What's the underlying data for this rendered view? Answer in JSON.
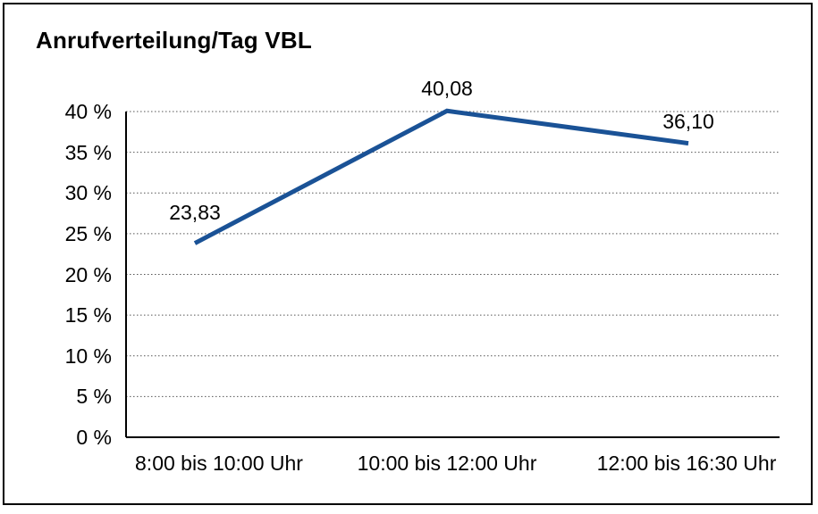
{
  "chart_data": {
    "type": "line",
    "title": "Anrufverteilung/Tag VBL",
    "categories": [
      "8:00 bis 10:00 Uhr",
      "10:00 bis 12:00 Uhr",
      "12:00 bis 16:30 Uhr"
    ],
    "values": [
      23.83,
      40.08,
      36.1
    ],
    "data_labels": [
      "23,83",
      "40,08",
      "36,10"
    ],
    "xlabel": "",
    "ylabel": "",
    "ylim": [
      0,
      40
    ],
    "ytick_step": 5,
    "ytick_labels": [
      "0 %",
      "5 %",
      "10 %",
      "15 %",
      "20 %",
      "25 %",
      "30 %",
      "35 %",
      "40 %"
    ],
    "grid": "horizontal-dotted",
    "legend": "none",
    "colors": {
      "line": "#1a5296",
      "grid": "#555555",
      "axis": "#000000",
      "text": "#000000",
      "border": "#000000",
      "background": "#ffffff"
    }
  }
}
